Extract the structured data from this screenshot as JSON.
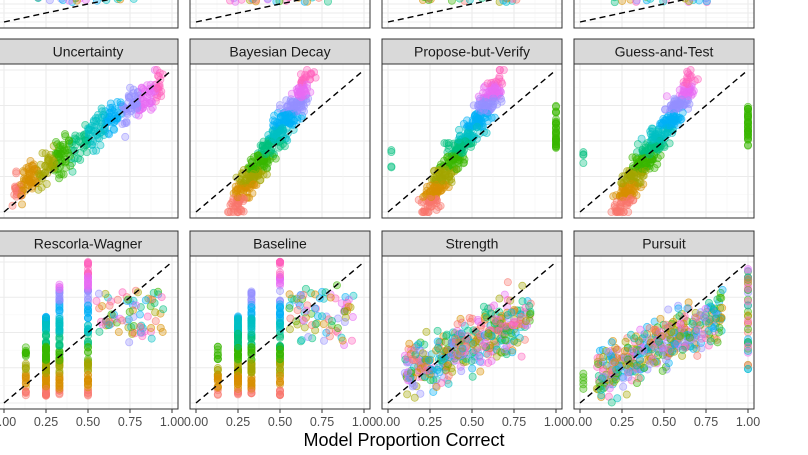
{
  "chart_data": {
    "type": "scatter",
    "xlabel": "Model Proportion Correct",
    "xlim": [
      0,
      1
    ],
    "ylim": [
      0,
      1
    ],
    "xticks": [
      "0.00",
      "0.25",
      "0.50",
      "0.75",
      "1.00"
    ],
    "grid": true,
    "reference_line": {
      "slope": 1,
      "intercept": 0,
      "style": "dashed"
    },
    "point_colors": [
      "#F8766D",
      "#D89000",
      "#A3A500",
      "#39B600",
      "#00BF7D",
      "#00BFC4",
      "#00B0F6",
      "#9590FF",
      "#E76BF3",
      "#FF62BC"
    ],
    "panels": [
      {
        "title": "",
        "row": 0,
        "pattern": "top-edge"
      },
      {
        "title": "",
        "row": 0,
        "pattern": "top-edge"
      },
      {
        "title": "",
        "row": 0,
        "pattern": "top-edge"
      },
      {
        "title": "",
        "row": 0,
        "pattern": "top-edge"
      },
      {
        "title": "Uncertainty",
        "row": 1,
        "pattern": "diagonal-cloud"
      },
      {
        "title": "Bayesian Decay",
        "row": 1,
        "pattern": "steep-cloud"
      },
      {
        "title": "Propose-but-Verify",
        "row": 1,
        "pattern": "steep-cloud-with-column-at-1"
      },
      {
        "title": "Guess-and-Test",
        "row": 1,
        "pattern": "steep-cloud-with-column-at-1"
      },
      {
        "title": "Rescorla-Wagner",
        "row": 2,
        "pattern": "vertical-columns",
        "columns_x": [
          0.13,
          0.25,
          0.33,
          0.5
        ]
      },
      {
        "title": "Baseline",
        "row": 2,
        "pattern": "vertical-columns",
        "columns_x": [
          0.13,
          0.25,
          0.33,
          0.5
        ]
      },
      {
        "title": "Strength",
        "row": 2,
        "pattern": "broad-cloud"
      },
      {
        "title": "Pursuit",
        "row": 2,
        "pattern": "broad-cloud-with-column-at-1"
      }
    ]
  }
}
